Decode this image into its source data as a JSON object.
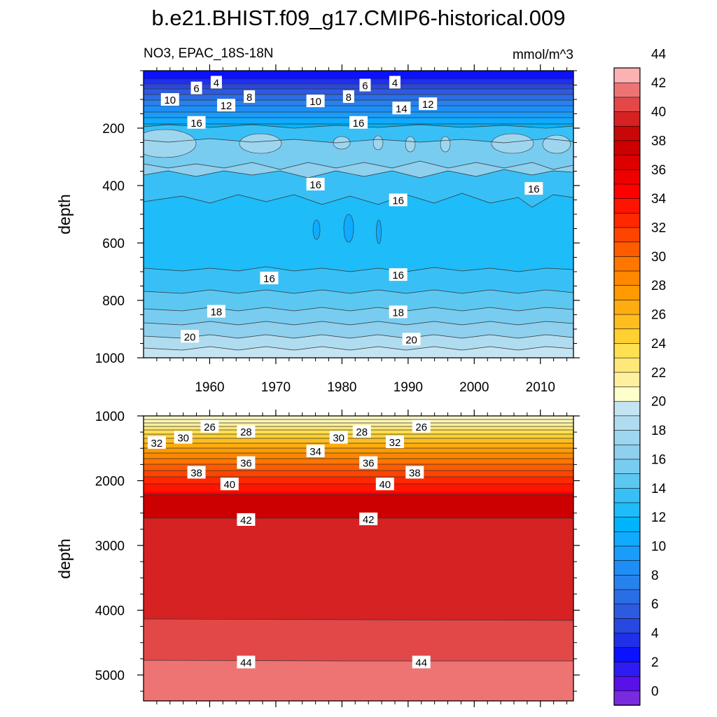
{
  "title": "b.e21.BHIST.f09_g17.CMIP6-historical.009",
  "chart_data": [
    {
      "type": "contour",
      "panel": "upper",
      "left_label": "NO3, EPAC_18S-18N",
      "right_label": "mmol/m^3",
      "ylabel": "depth",
      "ylim": [
        1000,
        0
      ],
      "xlim": [
        1950,
        2015
      ],
      "xticks": [
        "1960",
        "1970",
        "1980",
        "1990",
        "2000",
        "2010"
      ],
      "yticks": [
        "200",
        "400",
        "600",
        "800",
        "1000"
      ],
      "contour_labels": [
        {
          "text": "4",
          "x": 1961,
          "depth": 40
        },
        {
          "text": "4",
          "x": 1988,
          "depth": 40
        },
        {
          "text": "6",
          "x": 1958,
          "depth": 60
        },
        {
          "text": "6",
          "x": 1983.5,
          "depth": 50
        },
        {
          "text": "8",
          "x": 1966,
          "depth": 90
        },
        {
          "text": "8",
          "x": 1981,
          "depth": 90
        },
        {
          "text": "10",
          "x": 1954,
          "depth": 100
        },
        {
          "text": "10",
          "x": 1976,
          "depth": 105
        },
        {
          "text": "12",
          "x": 1962.5,
          "depth": 120
        },
        {
          "text": "12",
          "x": 1993,
          "depth": 115
        },
        {
          "text": "14",
          "x": 1989,
          "depth": 130
        },
        {
          "text": "16",
          "x": 1958,
          "depth": 180
        },
        {
          "text": "16",
          "x": 1982.5,
          "depth": 180
        },
        {
          "text": "16",
          "x": 1976,
          "depth": 395
        },
        {
          "text": "16",
          "x": 1988.5,
          "depth": 450
        },
        {
          "text": "16",
          "x": 2009,
          "depth": 410
        },
        {
          "text": "16",
          "x": 1969,
          "depth": 722
        },
        {
          "text": "16",
          "x": 1988.5,
          "depth": 710
        },
        {
          "text": "18",
          "x": 1961,
          "depth": 838
        },
        {
          "text": "18",
          "x": 1988.5,
          "depth": 840
        },
        {
          "text": "20",
          "x": 1957,
          "depth": 925
        },
        {
          "text": "20",
          "x": 1990.5,
          "depth": 935
        }
      ]
    },
    {
      "type": "contour",
      "panel": "lower",
      "ylabel": "depth",
      "ylim": [
        5400,
        1000
      ],
      "yticks": [
        "1000",
        "2000",
        "3000",
        "4000",
        "5000"
      ],
      "contour_labels": [
        {
          "text": "26",
          "x": 1960,
          "depth": 1160
        },
        {
          "text": "26",
          "x": 1992,
          "depth": 1160
        },
        {
          "text": "28",
          "x": 1965.5,
          "depth": 1240
        },
        {
          "text": "28",
          "x": 1983,
          "depth": 1240
        },
        {
          "text": "30",
          "x": 1956,
          "depth": 1330
        },
        {
          "text": "30",
          "x": 1979.5,
          "depth": 1330
        },
        {
          "text": "32",
          "x": 1952,
          "depth": 1410
        },
        {
          "text": "32",
          "x": 1988,
          "depth": 1400
        },
        {
          "text": "34",
          "x": 1976,
          "depth": 1540
        },
        {
          "text": "36",
          "x": 1965.5,
          "depth": 1720
        },
        {
          "text": "36",
          "x": 1984,
          "depth": 1720
        },
        {
          "text": "38",
          "x": 1958,
          "depth": 1870
        },
        {
          "text": "38",
          "x": 1991,
          "depth": 1870
        },
        {
          "text": "40",
          "x": 1963,
          "depth": 2050
        },
        {
          "text": "40",
          "x": 1986.5,
          "depth": 2050
        },
        {
          "text": "42",
          "x": 1965.5,
          "depth": 2600
        },
        {
          "text": "42",
          "x": 1984,
          "depth": 2590
        },
        {
          "text": "44",
          "x": 1965.5,
          "depth": 4800
        },
        {
          "text": "44",
          "x": 1992,
          "depth": 4800
        }
      ]
    }
  ],
  "colorbar": {
    "labels": [
      "0",
      "2",
      "4",
      "6",
      "8",
      "10",
      "12",
      "14",
      "16",
      "18",
      "20",
      "22",
      "24",
      "26",
      "28",
      "30",
      "32",
      "34",
      "36",
      "38",
      "40",
      "42",
      "44"
    ],
    "colors": [
      "#7a2be0",
      "#5a10e8",
      "#2e1cf0",
      "#0a12ff",
      "#2030e8",
      "#2848e0",
      "#2e5ae0",
      "#2a6ee6",
      "#2882ee",
      "#1e8ef6",
      "#1a9cfa",
      "#10aaff",
      "#00b4fb",
      "#1ebcf8",
      "#38c0f6",
      "#5cc8f2",
      "#78ccf0",
      "#8ed0ee",
      "#9ed6f0",
      "#b0dcf0",
      "#c4e4f2",
      "#ffffcc",
      "#fff0a0",
      "#ffe87a",
      "#ffe050",
      "#ffd030",
      "#ffbe20",
      "#ffac10",
      "#ff9a00",
      "#ff8800",
      "#ff7600",
      "#ff5c00",
      "#ff4400",
      "#ff2800",
      "#ff1400",
      "#ff0000",
      "#ee0000",
      "#dd0000",
      "#cc0000",
      "#c80808",
      "#d62222",
      "#e24848",
      "#ee7474",
      "#fcb2b2"
    ]
  }
}
